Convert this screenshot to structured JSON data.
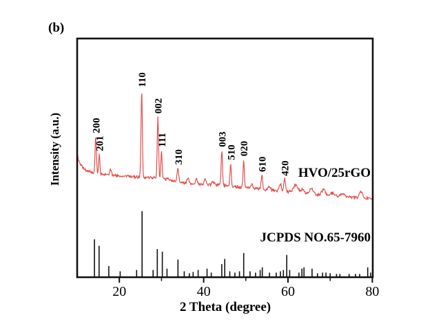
{
  "labels": {
    "panel": "(b)"
  },
  "chart_data": {
    "type": "line",
    "title": "",
    "xlabel": "2 Theta (degree)",
    "ylabel": "Intensity (a.u.)",
    "xlim": [
      10,
      80.1
    ],
    "xticks": [
      20,
      40,
      60,
      80
    ],
    "xticks_minor": [
      30,
      50,
      70
    ],
    "grid": false,
    "legend_position": "inline-right",
    "background": "#ffffff",
    "axis_color": "#111111",
    "series": [
      {
        "name": "HVO/25rGO",
        "kind": "xrd-trace",
        "color": "#e2504d",
        "noise_amplitude": 0.85,
        "baseline": [
          [
            10.0,
            51.0
          ],
          [
            10.6,
            48.0
          ],
          [
            11.2,
            46.0
          ],
          [
            12.0,
            44.8
          ],
          [
            13.0,
            44.2
          ],
          [
            14.5,
            43.6
          ],
          [
            16.0,
            43.2
          ],
          [
            18.0,
            42.8
          ],
          [
            20.0,
            42.5
          ],
          [
            23.0,
            42.1
          ],
          [
            26.0,
            41.8
          ],
          [
            29.0,
            41.7
          ],
          [
            31.0,
            41.2
          ],
          [
            33.0,
            40.3
          ],
          [
            34.5,
            39.6
          ],
          [
            36.0,
            39.3
          ],
          [
            38.0,
            39.0
          ],
          [
            41.0,
            38.8
          ],
          [
            44.0,
            38.6
          ],
          [
            47.0,
            38.1
          ],
          [
            49.5,
            37.6
          ],
          [
            52.0,
            37.2
          ],
          [
            54.0,
            36.8
          ],
          [
            56.5,
            36.3
          ],
          [
            59.0,
            35.9
          ],
          [
            61.0,
            35.5
          ],
          [
            63.0,
            35.1
          ],
          [
            65.0,
            34.8
          ],
          [
            67.0,
            34.5
          ],
          [
            69.5,
            34.2
          ],
          [
            72.0,
            33.9
          ],
          [
            75.0,
            33.6
          ],
          [
            78.0,
            33.3
          ],
          [
            80.1,
            33.0
          ]
        ],
        "peaks": [
          {
            "two_theta": 14.4,
            "intensity": 42,
            "width": 0.22,
            "label": "200"
          },
          {
            "two_theta": 15.25,
            "intensity": 22,
            "width": 0.2,
            "label": "201"
          },
          {
            "two_theta": 17.9,
            "intensity": 6,
            "width": 0.3
          },
          {
            "two_theta": 25.3,
            "intensity": 100,
            "width": 0.22,
            "label": "110"
          },
          {
            "two_theta": 29.15,
            "intensity": 70,
            "width": 0.22,
            "label": "002"
          },
          {
            "two_theta": 30.0,
            "intensity": 32,
            "width": 0.2,
            "label": "111"
          },
          {
            "two_theta": 33.9,
            "intensity": 16,
            "width": 0.28,
            "label": "310"
          },
          {
            "two_theta": 36.3,
            "intensity": 5,
            "width": 0.35
          },
          {
            "two_theta": 38.3,
            "intensity": 6,
            "width": 0.35
          },
          {
            "two_theta": 40.4,
            "intensity": 6,
            "width": 0.35
          },
          {
            "two_theta": 42.2,
            "intensity": 4,
            "width": 0.35
          },
          {
            "two_theta": 44.3,
            "intensity": 40,
            "width": 0.22,
            "label": "003"
          },
          {
            "two_theta": 46.4,
            "intensity": 26,
            "width": 0.22,
            "label": "510"
          },
          {
            "two_theta": 49.5,
            "intensity": 32,
            "width": 0.22,
            "label": "020"
          },
          {
            "two_theta": 51.5,
            "intensity": 5,
            "width": 0.3
          },
          {
            "two_theta": 53.8,
            "intensity": 16,
            "width": 0.25,
            "label": "610"
          },
          {
            "two_theta": 55.5,
            "intensity": 4,
            "width": 0.4
          },
          {
            "two_theta": 58.2,
            "intensity": 8,
            "width": 0.35
          },
          {
            "two_theta": 59.2,
            "intensity": 14,
            "width": 0.3,
            "label": "420"
          },
          {
            "two_theta": 61.8,
            "intensity": 9,
            "width": 0.8
          },
          {
            "two_theta": 63.5,
            "intensity": 5,
            "width": 0.5
          },
          {
            "two_theta": 65.6,
            "intensity": 7,
            "width": 0.6
          },
          {
            "two_theta": 68.5,
            "intensity": 7,
            "width": 0.6
          },
          {
            "two_theta": 70.5,
            "intensity": 4,
            "width": 0.5
          },
          {
            "two_theta": 73.0,
            "intensity": 4,
            "width": 0.6
          },
          {
            "two_theta": 77.3,
            "intensity": 6,
            "width": 0.5
          }
        ]
      },
      {
        "name": "JCPDS NO.65-7960",
        "kind": "stick-pattern",
        "color": "#111111",
        "sticks": [
          [
            14.1,
            57
          ],
          [
            15.2,
            47
          ],
          [
            17.5,
            16
          ],
          [
            20.2,
            8
          ],
          [
            24.1,
            10
          ],
          [
            25.4,
            100
          ],
          [
            28.0,
            10
          ],
          [
            29.0,
            42
          ],
          [
            30.2,
            38
          ],
          [
            31.3,
            12
          ],
          [
            33.9,
            26
          ],
          [
            35.4,
            8
          ],
          [
            36.6,
            5
          ],
          [
            37.5,
            7
          ],
          [
            38.7,
            10
          ],
          [
            40.8,
            12
          ],
          [
            41.8,
            6
          ],
          [
            44.3,
            19
          ],
          [
            45.0,
            27
          ],
          [
            46.2,
            8
          ],
          [
            47.4,
            6
          ],
          [
            48.5,
            8
          ],
          [
            49.5,
            36
          ],
          [
            51.0,
            8
          ],
          [
            52.3,
            6
          ],
          [
            53.4,
            10
          ],
          [
            53.9,
            14
          ],
          [
            55.6,
            6
          ],
          [
            57.2,
            6
          ],
          [
            58.2,
            8
          ],
          [
            58.9,
            10
          ],
          [
            59.7,
            33
          ],
          [
            60.4,
            10
          ],
          [
            62.6,
            6
          ],
          [
            63.3,
            12
          ],
          [
            63.8,
            14
          ],
          [
            65.7,
            12
          ],
          [
            67.0,
            5
          ],
          [
            68.2,
            6
          ],
          [
            69.0,
            6
          ],
          [
            70.0,
            5
          ],
          [
            71.5,
            4
          ],
          [
            72.3,
            4
          ],
          [
            74.5,
            4
          ],
          [
            76.0,
            4
          ],
          [
            77.0,
            4
          ],
          [
            78.9,
            14
          ],
          [
            79.6,
            6
          ]
        ]
      }
    ]
  }
}
